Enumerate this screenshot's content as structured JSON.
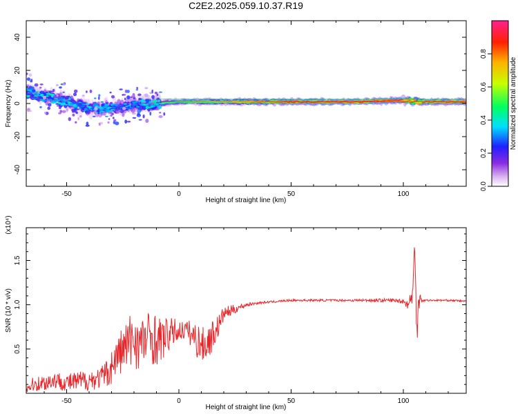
{
  "figure_title": "C2E2.2025.059.10.37.R19",
  "chart_data": [
    {
      "type": "heatmap",
      "name": "spectrogram",
      "title": "",
      "xlabel": "Height of straight line (km)",
      "ylabel": "Frequency (Hz)",
      "xlim": [
        -68,
        128
      ],
      "ylim": [
        -50,
        50
      ],
      "x_ticks": [
        -50,
        0,
        50,
        100
      ],
      "y_ticks": [
        -40,
        -20,
        0,
        20,
        40
      ],
      "colorbar": {
        "label": "Normalized spectral amplitude",
        "range": [
          0,
          1
        ],
        "ticks": [
          0.0,
          0.2,
          0.4,
          0.6,
          0.8
        ],
        "colors": [
          "#ffffff",
          "#d8b0f0",
          "#8a2be2",
          "#2020ff",
          "#00e0ff",
          "#00ff60",
          "#c8ff00",
          "#ffb000",
          "#ff2000",
          "#ff2090"
        ]
      },
      "ridge": {
        "x": [
          -68,
          -60,
          -50,
          -40,
          -30,
          -20,
          -10,
          0,
          10,
          20,
          40,
          60,
          80,
          100,
          106,
          128
        ],
        "y": [
          7,
          4,
          1,
          -3,
          -3,
          -1,
          0,
          1,
          1,
          1,
          1,
          1,
          1,
          2,
          1,
          1
        ],
        "peak_amplitude": [
          0.45,
          0.45,
          0.45,
          0.4,
          0.4,
          0.4,
          0.5,
          0.55,
          0.6,
          0.7,
          0.85,
          0.95,
          0.95,
          0.95,
          0.85,
          0.95
        ]
      }
    },
    {
      "type": "line",
      "name": "snr",
      "title": "",
      "xlabel": "Height of straight line (km)",
      "ylabel": "SNR (10 * v/v)",
      "y_multiplier": "(x10⁴)",
      "xlim": [
        -68,
        128
      ],
      "ylim": [
        0.0,
        1.87
      ],
      "x_ticks": [
        -50,
        0,
        50,
        100
      ],
      "y_ticks": [
        0.5,
        1.0,
        1.5
      ],
      "color": "#e8262a",
      "series": [
        {
          "x": [
            -68,
            -65,
            -60,
            -55,
            -50,
            -45,
            -40,
            -35,
            -31,
            -28,
            -25,
            -22,
            -20,
            -18,
            -15,
            -12,
            -10,
            -8,
            -5,
            -2,
            0,
            3,
            5,
            8,
            10,
            12,
            15,
            18,
            20,
            25,
            30,
            35,
            40,
            50,
            60,
            70,
            80,
            90,
            95,
            100,
            102,
            104,
            105,
            106,
            107,
            108,
            110,
            115,
            120,
            128
          ],
          "y": [
            0.05,
            0.1,
            0.12,
            0.15,
            0.12,
            0.13,
            0.15,
            0.17,
            0.25,
            0.4,
            0.5,
            0.55,
            0.65,
            0.55,
            0.6,
            0.65,
            0.6,
            0.6,
            0.65,
            0.7,
            0.7,
            0.72,
            0.68,
            0.6,
            0.55,
            0.55,
            0.65,
            0.78,
            0.9,
            0.95,
            1.0,
            1.02,
            1.03,
            1.05,
            1.05,
            1.05,
            1.05,
            1.05,
            1.05,
            1.04,
            1.0,
            1.1,
            1.6,
            0.7,
            1.2,
            1.05,
            1.05,
            1.05,
            1.05,
            1.04
          ],
          "noise_amplitude": [
            0.05,
            0.08,
            0.1,
            0.1,
            0.1,
            0.12,
            0.12,
            0.12,
            0.18,
            0.22,
            0.28,
            0.35,
            0.35,
            0.3,
            0.3,
            0.32,
            0.3,
            0.25,
            0.2,
            0.15,
            0.12,
            0.1,
            0.15,
            0.2,
            0.2,
            0.2,
            0.18,
            0.12,
            0.08,
            0.05,
            0.02,
            0.015,
            0.012,
            0.012,
            0.012,
            0.012,
            0.015,
            0.02,
            0.02,
            0.03,
            0.05,
            0.1,
            0.2,
            0.2,
            0.25,
            0.03,
            0.01,
            0.01,
            0.01,
            0.01
          ]
        }
      ]
    }
  ]
}
